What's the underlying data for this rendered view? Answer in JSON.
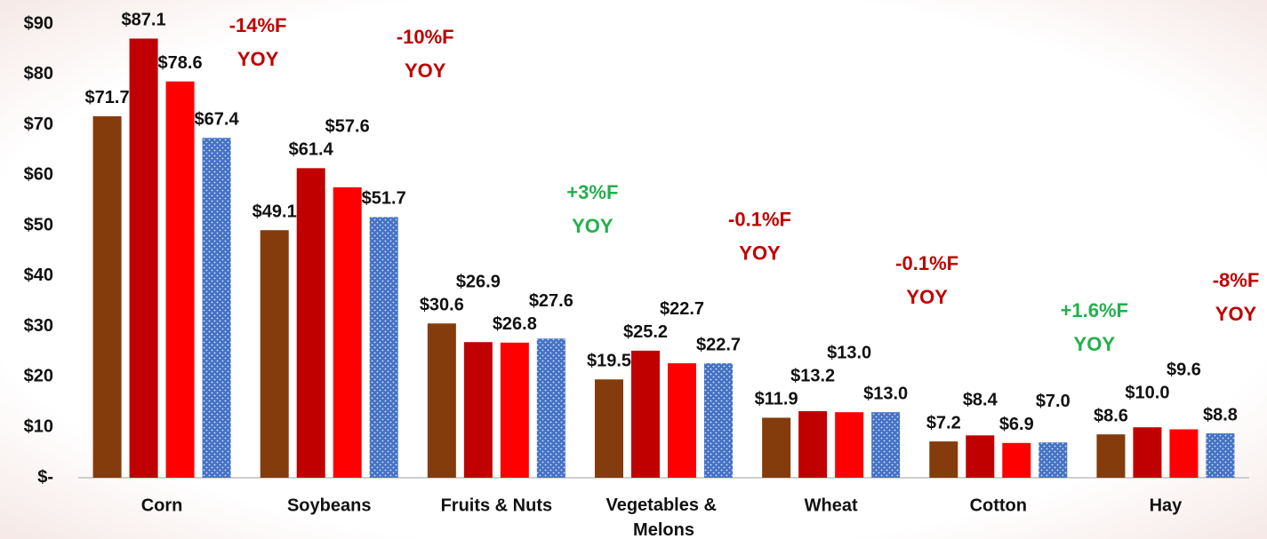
{
  "chart_data": {
    "type": "bar",
    "categories": [
      "Corn",
      "Soybeans",
      "Fruits & Nuts",
      "Vegetables & Melons",
      "Wheat",
      "Cotton",
      "Hay"
    ],
    "series": [
      {
        "color": "#843c0c",
        "values": [
          71.7,
          49.1,
          30.6,
          19.5,
          11.9,
          7.2,
          8.6
        ],
        "value_labels": [
          "$71.7",
          "$49.1",
          "$30.6",
          "$19.5",
          "$11.9",
          "$7.2",
          "$8.6"
        ]
      },
      {
        "color": "#c00000",
        "values": [
          87.1,
          61.4,
          26.9,
          25.2,
          13.2,
          8.4,
          10.0
        ],
        "value_labels": [
          "$87.1",
          "$61.4",
          "$26.9",
          "$25.2",
          "$13.2",
          "$8.4",
          "$10.0"
        ]
      },
      {
        "color": "#ff0000",
        "values": [
          78.6,
          57.6,
          26.8,
          22.7,
          13.0,
          6.9,
          9.6
        ],
        "value_labels": [
          "$78.6",
          "$57.6",
          "$26.8",
          "$22.7",
          "$13.0",
          "$6.9",
          "$9.6"
        ]
      },
      {
        "color": "#4472c4",
        "pattern": "dots",
        "values": [
          67.4,
          51.7,
          27.6,
          22.7,
          13.0,
          7.0,
          8.8
        ],
        "value_labels": [
          "$67.4",
          "$51.7",
          "$27.6",
          "$22.7",
          "$13.0",
          "$7.0",
          "$8.8"
        ]
      }
    ],
    "annotations": [
      {
        "lines": [
          "-14%F",
          "YOY"
        ],
        "color": "#c00000"
      },
      {
        "lines": [
          "-10%F",
          "YOY"
        ],
        "color": "#c00000"
      },
      {
        "lines": [
          "+3%F",
          "YOY"
        ],
        "color": "#22b04b"
      },
      {
        "lines": [
          "-0.1%F",
          "YOY"
        ],
        "color": "#c00000"
      },
      {
        "lines": [
          "-0.1%F",
          "YOY"
        ],
        "color": "#c00000"
      },
      {
        "lines": [
          "+1.6%F",
          "YOY"
        ],
        "color": "#22b04b"
      },
      {
        "lines": [
          "-8%F",
          "YOY"
        ],
        "color": "#c00000"
      }
    ],
    "ylim": [
      0,
      90
    ],
    "yticks": [
      {
        "value": 0,
        "label": "$-"
      },
      {
        "value": 10,
        "label": "$10"
      },
      {
        "value": 20,
        "label": "$20"
      },
      {
        "value": 30,
        "label": "$30"
      },
      {
        "value": 40,
        "label": "$40"
      },
      {
        "value": 50,
        "label": "$50"
      },
      {
        "value": 60,
        "label": "$60"
      },
      {
        "value": 70,
        "label": "$70"
      },
      {
        "value": 80,
        "label": "$80"
      },
      {
        "value": 90,
        "label": "$90"
      }
    ],
    "grid": false
  }
}
